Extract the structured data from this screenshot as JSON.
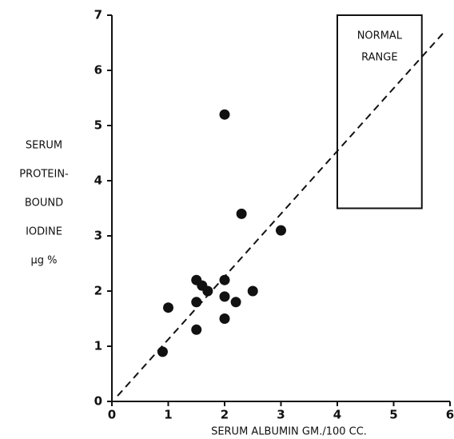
{
  "chart_data": {
    "type": "scatter",
    "x_label": "SERUM  ALBUMIN  GM./100 CC.",
    "y_label": [
      "SERUM",
      "PROTEIN-",
      "BOUND",
      "IODINE",
      "μg %"
    ],
    "series": [
      {
        "color": "#111111",
        "x": [
          1.0,
          0.9,
          1.5,
          1.5,
          1.5,
          1.6,
          1.7,
          2.0,
          2.0,
          2.0,
          2.0,
          2.2,
          2.3,
          2.5,
          3.0
        ],
        "values": [
          1.7,
          0.9,
          2.2,
          1.8,
          1.3,
          2.1,
          2.0,
          5.2,
          2.2,
          1.9,
          1.5,
          1.8,
          3.4,
          2.0,
          3.1
        ]
      }
    ],
    "trend_line": {
      "x": [
        0.1,
        5.9
      ],
      "y": [
        0.1,
        6.7
      ]
    },
    "normal_range": {
      "label": [
        "NORMAL",
        "RANGE"
      ],
      "x": [
        4,
        5.5
      ],
      "y": [
        3.5,
        7
      ]
    },
    "xlim": [
      0,
      6
    ],
    "xticks": [
      0,
      1,
      2,
      3,
      4,
      5,
      6
    ],
    "ylim": [
      0,
      7
    ],
    "yticks": [
      0,
      1,
      2,
      3,
      4,
      5,
      6,
      7
    ]
  }
}
